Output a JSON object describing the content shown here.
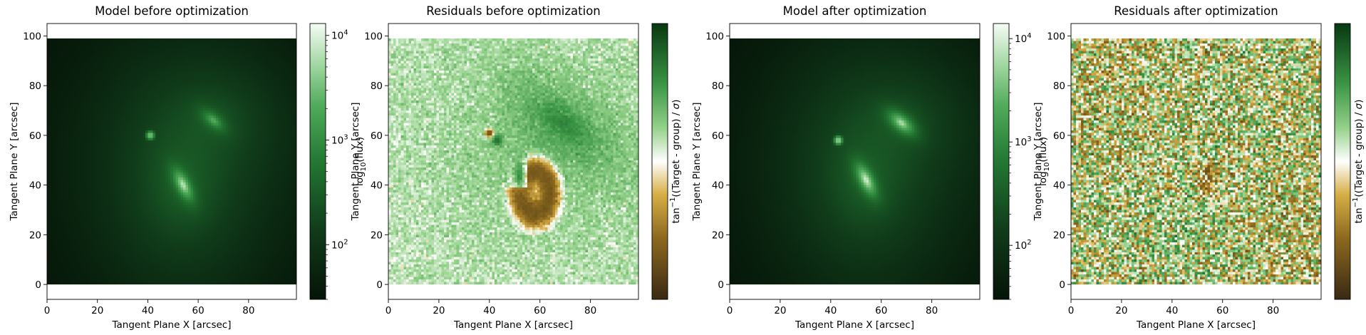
{
  "colors": {
    "green_dark": "#0a2210",
    "green_mid": "#2e8f42",
    "green_light": "#9fd49a",
    "green_pale": "#e6f4e4",
    "gold": "#d4a838",
    "brown_dark": "#3d2c12",
    "white": "#ffffff"
  },
  "chart_data": [
    {
      "type": "heatmap",
      "title": "Model before optimization",
      "xlabel": "Tangent Plane X [arcsec]",
      "ylabel": "Tangent Plane Y [arcsec]",
      "xlim": [
        0,
        99
      ],
      "ylim": [
        -6,
        105
      ],
      "image_extent_x": [
        0,
        99
      ],
      "image_extent_y": [
        0,
        99
      ],
      "x_ticks": [
        0,
        20,
        40,
        60,
        80
      ],
      "y_ticks": [
        0,
        20,
        40,
        60,
        80,
        100
      ],
      "colormap": "greens-dark-to-white",
      "scale": "log",
      "colorbar": {
        "label": "log$_{10}$(flux)",
        "label_main": "log",
        "label_sub": "10",
        "label_rest": "(flux)",
        "range": [
          30,
          13000
        ],
        "ticks": [
          {
            "value": 100,
            "base": "10",
            "exp": "2"
          },
          {
            "value": 1000,
            "base": "10",
            "exp": "3"
          },
          {
            "value": 10000,
            "base": "10",
            "exp": "4"
          }
        ]
      },
      "sources": [
        {
          "name": "extended-galaxy",
          "x": 54,
          "y": 40,
          "peak": 9000
        },
        {
          "name": "companion-galaxy",
          "x": 66,
          "y": 66,
          "peak": 2500
        },
        {
          "name": "point-source",
          "x": 41,
          "y": 60,
          "peak": 3500
        }
      ]
    },
    {
      "type": "heatmap",
      "title": "Residuals before optimization",
      "xlabel": "Tangent Plane X [arcsec]",
      "ylabel": "Tangent Plane Y [arcsec]",
      "xlim": [
        0,
        99
      ],
      "ylim": [
        -6,
        105
      ],
      "image_extent_x": [
        0,
        99
      ],
      "image_extent_y": [
        0,
        99
      ],
      "x_ticks": [
        0,
        20,
        40,
        60,
        80
      ],
      "y_ticks": [
        0,
        20,
        40,
        60,
        80,
        100
      ],
      "colormap": "brown-gold-white-green",
      "colorbar": {
        "label": "tan$^{-1}$((Target - group) / $\\sigma$)",
        "label_pre": "tan",
        "label_sup": "−1",
        "label_rest": "((Target - group) / ",
        "label_sigma": "σ",
        "label_close": ")",
        "range": [
          -1.57,
          1.57
        ],
        "ticks": []
      }
    },
    {
      "type": "heatmap",
      "title": "Model after optimization",
      "xlabel": "Tangent Plane X [arcsec]",
      "ylabel": "Tangent Plane Y [arcsec]",
      "xlim": [
        0,
        99
      ],
      "ylim": [
        -6,
        105
      ],
      "image_extent_x": [
        0,
        99
      ],
      "image_extent_y": [
        0,
        99
      ],
      "x_ticks": [
        0,
        20,
        40,
        60,
        80
      ],
      "y_ticks": [
        0,
        20,
        40,
        60,
        80,
        100
      ],
      "colormap": "greens-dark-to-white",
      "scale": "log",
      "colorbar": {
        "label": "log$_{10}$(flux)",
        "label_main": "log",
        "label_sub": "10",
        "label_rest": "(flux)",
        "range": [
          30,
          14000
        ],
        "ticks": [
          {
            "value": 100,
            "base": "10",
            "exp": "2"
          },
          {
            "value": 1000,
            "base": "10",
            "exp": "3"
          },
          {
            "value": 10000,
            "base": "10",
            "exp": "4"
          }
        ]
      },
      "sources": [
        {
          "name": "extended-galaxy",
          "x": 54,
          "y": 42,
          "peak": 12000
        },
        {
          "name": "companion-galaxy",
          "x": 68,
          "y": 65,
          "peak": 8000
        },
        {
          "name": "point-source",
          "x": 43,
          "y": 58,
          "peak": 5000
        }
      ]
    },
    {
      "type": "heatmap",
      "title": "Residuals after optimization",
      "xlabel": "Tangent Plane X [arcsec]",
      "ylabel": "Tangent Plane Y [arcsec]",
      "xlim": [
        0,
        99
      ],
      "ylim": [
        -6,
        105
      ],
      "image_extent_x": [
        0,
        99
      ],
      "image_extent_y": [
        0,
        99
      ],
      "x_ticks": [
        0,
        20,
        40,
        60,
        80
      ],
      "y_ticks": [
        0,
        20,
        40,
        60,
        80,
        100
      ],
      "colormap": "brown-gold-white-green",
      "colorbar": {
        "label": "tan$^{-1}$((Target - group) / $\\sigma$)",
        "label_pre": "tan",
        "label_sup": "−1",
        "label_rest": "((Target - group) / ",
        "label_sigma": "σ",
        "label_close": ")",
        "range": [
          -1.57,
          1.57
        ],
        "ticks": []
      }
    }
  ]
}
